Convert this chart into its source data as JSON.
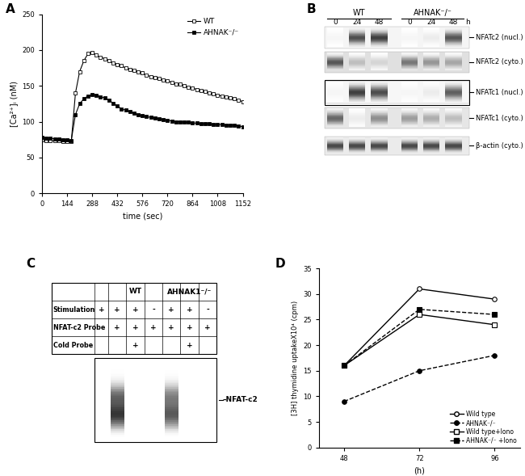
{
  "panel_A": {
    "title": "A",
    "xlabel": "time (sec)",
    "ylabel": "[Ca²⁺]ᵢ (nM)",
    "xlim": [
      0,
      1152
    ],
    "ylim": [
      0,
      250
    ],
    "xticks": [
      0,
      144,
      288,
      432,
      576,
      720,
      864,
      1008,
      1152
    ],
    "yticks": [
      0,
      50,
      100,
      150,
      200,
      250
    ],
    "wt_x": [
      0,
      24,
      48,
      72,
      96,
      120,
      144,
      168,
      192,
      216,
      240,
      264,
      288,
      312,
      336,
      360,
      384,
      408,
      432,
      456,
      480,
      504,
      528,
      552,
      576,
      600,
      624,
      648,
      672,
      696,
      720,
      744,
      768,
      792,
      816,
      840,
      864,
      888,
      912,
      936,
      960,
      984,
      1008,
      1032,
      1056,
      1080,
      1104,
      1128,
      1152
    ],
    "wt_y": [
      75,
      74,
      74,
      73,
      73,
      72,
      72,
      72,
      140,
      170,
      185,
      195,
      197,
      193,
      190,
      188,
      185,
      182,
      180,
      178,
      175,
      173,
      172,
      170,
      168,
      165,
      163,
      162,
      160,
      158,
      157,
      155,
      153,
      152,
      150,
      148,
      147,
      145,
      143,
      142,
      140,
      139,
      137,
      136,
      135,
      133,
      132,
      130,
      128
    ],
    "ahnak_x": [
      0,
      24,
      48,
      72,
      96,
      120,
      144,
      168,
      192,
      216,
      240,
      264,
      288,
      312,
      336,
      360,
      384,
      408,
      432,
      456,
      480,
      504,
      528,
      552,
      576,
      600,
      624,
      648,
      672,
      696,
      720,
      744,
      768,
      792,
      816,
      840,
      864,
      888,
      912,
      936,
      960,
      984,
      1008,
      1032,
      1056,
      1080,
      1104,
      1128,
      1152
    ],
    "ahnak_y": [
      78,
      77,
      77,
      76,
      76,
      75,
      75,
      74,
      110,
      125,
      132,
      136,
      138,
      137,
      135,
      133,
      130,
      126,
      122,
      118,
      116,
      114,
      112,
      110,
      108,
      107,
      106,
      105,
      104,
      103,
      102,
      101,
      100,
      100,
      99,
      99,
      98,
      98,
      97,
      97,
      97,
      96,
      96,
      96,
      95,
      95,
      95,
      94,
      93
    ],
    "wt_label": "WT",
    "ahnak_label": "AHNAK⁻/⁻"
  },
  "panel_B": {
    "title": "B",
    "wt_label": "WT",
    "ahnak_label": "AHNAK⁻/⁻",
    "timepoints": [
      "0",
      "24",
      "48",
      "0",
      "24",
      "48",
      "h"
    ],
    "bands": [
      {
        "label": "NFATc2 (nucl.)",
        "intensities": [
          0.04,
          0.75,
          0.82,
          0.04,
          0.08,
          0.72
        ],
        "bg": 0.96,
        "boxed": false,
        "band_style": "sharp"
      },
      {
        "label": "NFATc2 (cyto.)",
        "intensities": [
          0.72,
          0.28,
          0.18,
          0.58,
          0.45,
          0.38
        ],
        "bg": 0.88,
        "boxed": false,
        "band_style": "diffuse"
      },
      {
        "label": "NFATc1 (nucl.)",
        "intensities": [
          0.04,
          0.82,
          0.76,
          0.04,
          0.08,
          0.68
        ],
        "bg": 0.97,
        "boxed": true,
        "band_style": "sharp"
      },
      {
        "label": "NFATc1 (cyto.)",
        "intensities": [
          0.65,
          0.08,
          0.48,
          0.42,
          0.35,
          0.28
        ],
        "bg": 0.9,
        "boxed": false,
        "band_style": "diffuse"
      },
      {
        "label": "β-actin (cyto.)",
        "intensities": [
          0.78,
          0.78,
          0.78,
          0.78,
          0.78,
          0.78
        ],
        "bg": 0.92,
        "boxed": false,
        "band_style": "thick"
      }
    ]
  },
  "panel_C": {
    "title": "C",
    "row_headers": [
      "Stimulation",
      "NFAT-c2 Probe",
      "Cold Probe"
    ],
    "wt_label": "WT",
    "ahnak_label": "AHNAK1⁻/⁻",
    "extra_col_nfat": "+",
    "stimulation": [
      "+",
      "+",
      "-",
      "+",
      "+",
      "-"
    ],
    "nfat_probe": [
      "+",
      "+",
      "+",
      "+",
      "+",
      "+"
    ],
    "cold_probe": [
      "",
      "+",
      "",
      "",
      "+",
      ""
    ],
    "band_label": "NFAT-c2"
  },
  "panel_D": {
    "title": "D",
    "xlabel": "(h)",
    "ylabel": "[3H] thymidine uptakeX10⁴ (cpm)",
    "xlim": [
      40,
      104
    ],
    "ylim": [
      0,
      35
    ],
    "xticks": [
      48,
      72,
      96
    ],
    "yticks": [
      0,
      5,
      10,
      15,
      20,
      25,
      30,
      35
    ],
    "series": [
      {
        "label": "Wild type",
        "x": [
          48,
          72,
          96
        ],
        "y": [
          16,
          31,
          29
        ],
        "ls": "-",
        "marker": "o",
        "mfc": "white"
      },
      {
        "label": "AHNAK⁻/⁻",
        "x": [
          48,
          72,
          96
        ],
        "y": [
          9,
          15,
          18
        ],
        "ls": "--",
        "marker": "o",
        "mfc": "black"
      },
      {
        "label": "Wild type+Iono",
        "x": [
          48,
          72,
          96
        ],
        "y": [
          16,
          26,
          24
        ],
        "ls": "-",
        "marker": "s",
        "mfc": "white"
      },
      {
        "label": "AHNAK⁻/⁻ +Iono",
        "x": [
          48,
          72,
          96
        ],
        "y": [
          16,
          27,
          26
        ],
        "ls": "--",
        "marker": "s",
        "mfc": "black"
      }
    ]
  }
}
